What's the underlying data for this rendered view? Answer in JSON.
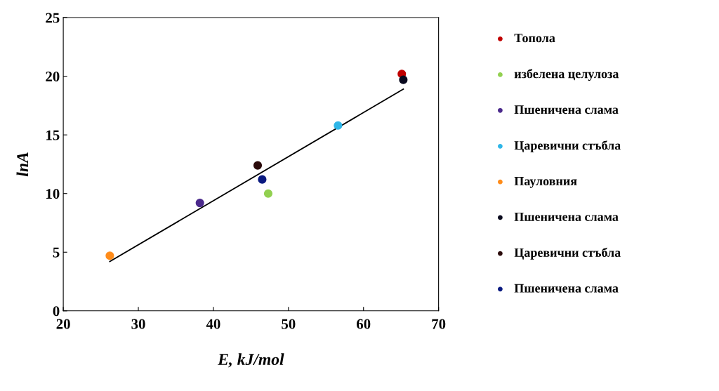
{
  "chart_data": {
    "type": "scatter",
    "xlabel": "E, kJ/mol",
    "ylabel": "lnA",
    "xlim": [
      20,
      70
    ],
    "xticks": [
      20,
      30,
      40,
      50,
      60,
      70
    ],
    "ylim": [
      0,
      25
    ],
    "yticks": [
      0,
      5,
      10,
      15,
      20,
      25
    ],
    "grid": false,
    "legend": "right",
    "marker": "circle",
    "series": [
      {
        "name": "Топола",
        "color": "#c00000",
        "x": [
          65.1
        ],
        "values": [
          20.2
        ]
      },
      {
        "name": "избелена целулоза",
        "color": "#92d050",
        "x": [
          47.3
        ],
        "values": [
          10.0
        ]
      },
      {
        "name": "Пшеничена слама",
        "color": "#4b2a8c",
        "x": [
          38.2
        ],
        "values": [
          9.2
        ]
      },
      {
        "name": "Царевични стъбла",
        "color": "#2fb6e8",
        "x": [
          56.6
        ],
        "values": [
          15.8
        ]
      },
      {
        "name": "Пауловния",
        "color": "#ff8c1a",
        "x": [
          26.2
        ],
        "values": [
          4.7
        ]
      },
      {
        "name": "Пшеничена слама",
        "color": "#0a0a1e",
        "x": [
          65.3
        ],
        "values": [
          19.7
        ]
      },
      {
        "name": "Царевични стъбла",
        "color": "#2a0a0a",
        "x": [
          45.9
        ],
        "values": [
          12.4
        ]
      },
      {
        "name": "Пшеничена слама",
        "color": "#0a1a80",
        "x": [
          46.5
        ],
        "values": [
          11.2
        ]
      },
      {
        "type": "line",
        "color": "#000000",
        "marker": "none",
        "x": [
          26.2,
          65.3
        ],
        "values": [
          4.2,
          18.9
        ]
      }
    ]
  }
}
